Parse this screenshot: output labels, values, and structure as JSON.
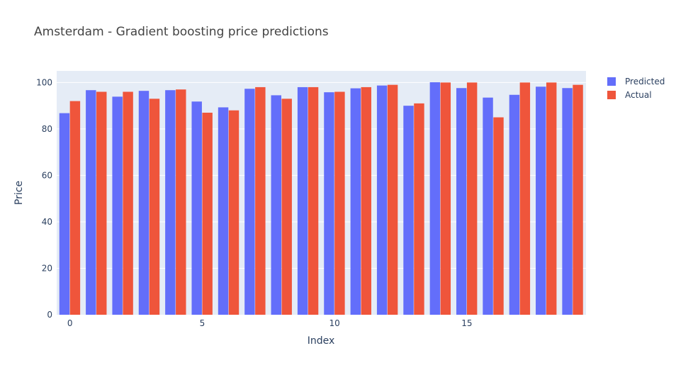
{
  "chart_data": {
    "type": "bar",
    "title": "Amsterdam - Gradient boosting price predictions",
    "xlabel": "Index",
    "ylabel": "Price",
    "x": [
      0,
      1,
      2,
      3,
      4,
      5,
      6,
      7,
      8,
      9,
      10,
      11,
      12,
      13,
      14,
      15,
      16,
      17,
      18,
      19
    ],
    "xlim": [
      -0.5,
      19.5
    ],
    "ylim": [
      0,
      105
    ],
    "xticks": [
      0,
      5,
      10,
      15
    ],
    "yticks": [
      0,
      20,
      40,
      60,
      80,
      100
    ],
    "grid": true,
    "legend_position": "top-right",
    "series": [
      {
        "name": "Predicted",
        "color": "#636efa",
        "values": [
          86.8,
          96.7,
          93.9,
          96.4,
          96.7,
          91.8,
          89.3,
          97.3,
          94.5,
          98.0,
          95.8,
          97.5,
          98.7,
          90.0,
          100.1,
          97.6,
          93.5,
          94.7,
          98.2,
          97.6
        ]
      },
      {
        "name": "Actual",
        "color": "#ef553b",
        "values": [
          92,
          96,
          96,
          93,
          97,
          87,
          88,
          98,
          93,
          98,
          96,
          98,
          99,
          91,
          100,
          100,
          85,
          100,
          100,
          99
        ]
      }
    ]
  },
  "style": {
    "plot_bg": "#e5ecf6",
    "grid_color": "#ffffff",
    "text_color": "#2a3f5f",
    "title_color": "#444444"
  }
}
